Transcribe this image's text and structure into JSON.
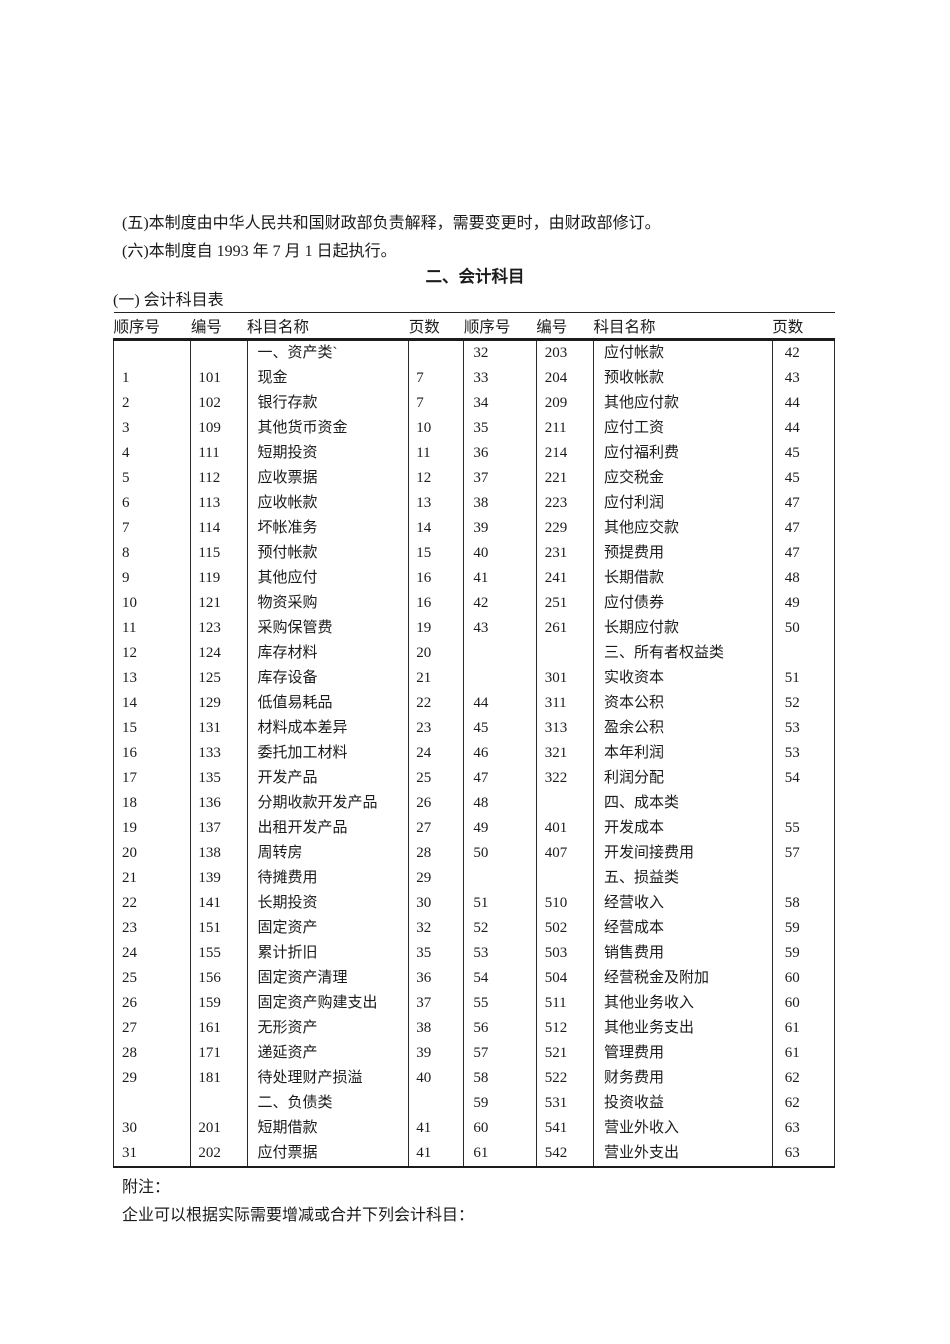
{
  "document": {
    "clause_5": "(五)本制度由中华人民共和国财政部负责解释，需要变更时，由财政部修订。",
    "clause_6": "(六)本制度自 1993 年 7 月 1 日起执行。",
    "section_title": "二、会计科目",
    "subsection_title": "(一) 会计科目表",
    "notes": {
      "label": "附注：",
      "text": "企业可以根据实际需要增减或合并下列会计科目："
    }
  },
  "table": {
    "headers": [
      "顺序号",
      "编号",
      "科目名称",
      "页数",
      "顺序号",
      "编号",
      "科目名称",
      "页数"
    ],
    "rows": [
      [
        "",
        "",
        "一、资产类`",
        "",
        "32",
        "203",
        "应付帐款",
        "42"
      ],
      [
        "1",
        "101",
        "现金",
        "7",
        "33",
        "204",
        "预收帐款",
        "43"
      ],
      [
        "2",
        "102",
        "银行存款",
        "7",
        "34",
        "209",
        "其他应付款",
        "44"
      ],
      [
        "3",
        "109",
        "其他货币资金",
        "10",
        "35",
        "211",
        "应付工资",
        "44"
      ],
      [
        "4",
        "111",
        "短期投资",
        "11",
        "36",
        "214",
        "应付福利费",
        "45"
      ],
      [
        "5",
        "112",
        "应收票据",
        "12",
        "37",
        "221",
        "应交税金",
        "45"
      ],
      [
        "6",
        "113",
        "应收帐款",
        "13",
        "38",
        "223",
        "应付利润",
        "47"
      ],
      [
        "7",
        "114",
        "坏帐准务",
        "14",
        "39",
        "229",
        "其他应交款",
        "47"
      ],
      [
        "8",
        "115",
        "预付帐款",
        "15",
        "40",
        "231",
        "预提费用",
        "47"
      ],
      [
        "9",
        "119",
        "其他应付",
        "16",
        "41",
        "241",
        "长期借款",
        "48"
      ],
      [
        "10",
        "121",
        "物资采购",
        "16",
        "42",
        "251",
        "应付债券",
        "49"
      ],
      [
        "11",
        "123",
        "采购保管费",
        "19",
        "43",
        "261",
        "长期应付款",
        "50"
      ],
      [
        "12",
        "124",
        "库存材料",
        "20",
        "",
        "",
        "三、所有者权益类",
        ""
      ],
      [
        "13",
        "125",
        "库存设备",
        "21",
        "",
        "301",
        "实收资本",
        "51"
      ],
      [
        "14",
        "129",
        "低值易耗品",
        "22",
        "44",
        "311",
        "资本公积",
        "52"
      ],
      [
        "15",
        "131",
        "材料成本差异",
        "23",
        "45",
        "313",
        "盈余公积",
        "53"
      ],
      [
        "16",
        "133",
        "委托加工材料",
        "24",
        "46",
        "321",
        "本年利润",
        "53"
      ],
      [
        "17",
        "135",
        "开发产品",
        "25",
        "47",
        "322",
        "利润分配",
        "54"
      ],
      [
        "18",
        "136",
        "分期收款开发产品",
        "26",
        "48",
        "",
        "四、成本类",
        ""
      ],
      [
        "19",
        "137",
        "出租开发产品",
        "27",
        "49",
        "401",
        "开发成本",
        "55"
      ],
      [
        "20",
        "138",
        "周转房",
        "28",
        "50",
        "407",
        "开发间接费用",
        "57"
      ],
      [
        "21",
        "139",
        "待摊费用",
        "29",
        "",
        "",
        "五、损益类",
        ""
      ],
      [
        "22",
        "141",
        "长期投资",
        "30",
        "51",
        "510",
        "经营收入",
        "58"
      ],
      [
        "23",
        "151",
        "固定资产",
        "32",
        "52",
        "502",
        "经营成本",
        "59"
      ],
      [
        "24",
        "155",
        "累计折旧",
        "35",
        "53",
        "503",
        "销售费用",
        "59"
      ],
      [
        "25",
        "156",
        "固定资产清理",
        "36",
        "54",
        "504",
        "经营税金及附加",
        "60"
      ],
      [
        "26",
        "159",
        "固定资产购建支出",
        "37",
        "55",
        "511",
        "其他业务收入",
        "60"
      ],
      [
        "27",
        "161",
        "无形资产",
        "38",
        "56",
        "512",
        "其他业务支出",
        "61"
      ],
      [
        "28",
        "171",
        "递延资产",
        "39",
        "57",
        "521",
        "管理费用",
        "61"
      ],
      [
        "29",
        "181",
        "待处理财产损溢",
        "40",
        "58",
        "522",
        "财务费用",
        "62"
      ],
      [
        "",
        "",
        "二、负债类",
        "",
        "59",
        "531",
        "投资收益",
        "62"
      ],
      [
        "30",
        "201",
        "短期借款",
        "41",
        "60",
        "541",
        "营业外收入",
        "63"
      ],
      [
        "31",
        "202",
        "应付票据",
        "41",
        "61",
        "542",
        "营业外支出",
        "63"
      ]
    ]
  }
}
